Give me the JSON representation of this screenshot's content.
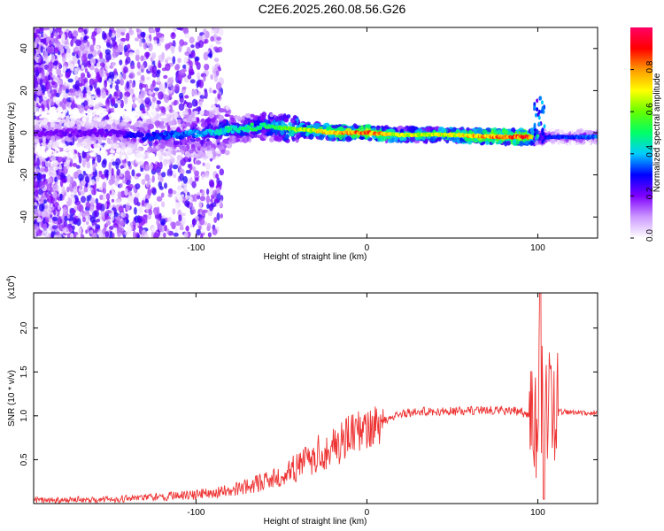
{
  "title": "C2E6.2025.260.08.56.G26",
  "chart_data": [
    {
      "type": "heatmap",
      "xlabel": "Height of straight line (km)",
      "ylabel": "Frequency (Hz)",
      "xlim": [
        -195,
        135
      ],
      "ylim": [
        -50,
        50
      ],
      "x_ticks": [
        -100,
        0,
        100
      ],
      "y_ticks": [
        -40,
        -20,
        0,
        20,
        40
      ],
      "colorbar": {
        "label": "Normalized spectral amplitude",
        "range": [
          0,
          1
        ],
        "ticks": [
          "0.0",
          "0.2",
          "0.4",
          "0.6",
          "0.8"
        ],
        "stops": [
          "#ffffff",
          "#cc99ff",
          "#7f00ff",
          "#0000ff",
          "#00ccff",
          "#00ff66",
          "#66ff00",
          "#ffff00",
          "#ff9900",
          "#ff0000",
          "#ff0066"
        ]
      },
      "ridge": {
        "x": [
          -195,
          -150,
          -130,
          -110,
          -90,
          -75,
          -60,
          -45,
          -30,
          -20,
          -10,
          0,
          20,
          50,
          80,
          95,
          100,
          105,
          135
        ],
        "frequency": [
          0,
          0,
          -2,
          -1,
          0,
          2,
          3,
          2,
          1,
          0,
          0,
          0,
          -1,
          -1,
          -2,
          -2,
          -2,
          -2,
          -2
        ],
        "amplitude": [
          0.2,
          0.22,
          0.3,
          0.35,
          0.42,
          0.48,
          0.5,
          0.6,
          0.7,
          0.8,
          0.82,
          0.85,
          0.65,
          0.7,
          0.85,
          0.88,
          0.5,
          0.3,
          0.35
        ]
      }
    },
    {
      "type": "line",
      "xlabel": "Height of straight line (km)",
      "ylabel": "SNR (10 * v/v)",
      "y_multiplier_label": "(x10",
      "y_multiplier_exp": "4",
      "xlim": [
        -195,
        135
      ],
      "ylim": [
        0,
        2.4
      ],
      "x_ticks": [
        -100,
        0,
        100
      ],
      "y_ticks": [
        "0.5",
        "1.0",
        "1.5",
        "2.0"
      ],
      "color": "#ee3333",
      "envelope": {
        "x": [
          -195,
          -150,
          -120,
          -100,
          -80,
          -60,
          -50,
          -40,
          -30,
          -20,
          -10,
          0,
          10,
          20,
          30,
          50,
          70,
          90,
          99,
          101,
          103,
          106,
          110,
          120,
          135
        ],
        "y": [
          0.04,
          0.05,
          0.08,
          0.1,
          0.15,
          0.25,
          0.32,
          0.42,
          0.55,
          0.66,
          0.76,
          0.85,
          0.95,
          1.02,
          1.05,
          1.05,
          1.07,
          1.05,
          0.95,
          1.3,
          1.2,
          1.1,
          1.05,
          1.04,
          1.03
        ]
      }
    }
  ]
}
